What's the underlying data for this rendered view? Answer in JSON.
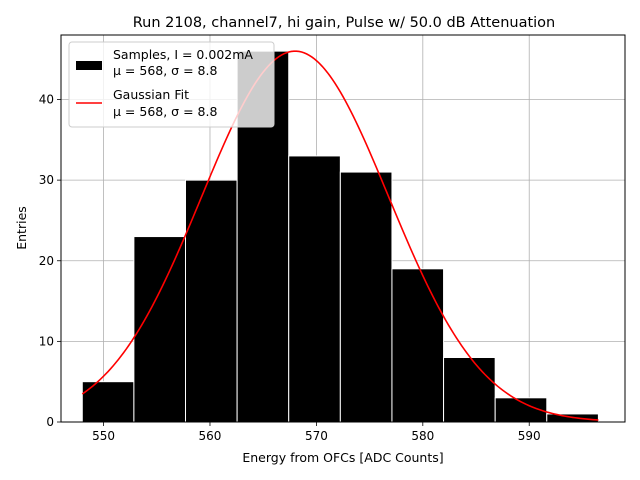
{
  "chart_data": {
    "type": "bar",
    "title": "Run 2108, channel7, hi gain, Pulse w/ 50.0 dB Attenuation",
    "xlabel": "Energy from OFCs [ADC Counts]",
    "ylabel": "Entries",
    "xlim": [
      546,
      599
    ],
    "ylim": [
      0,
      48
    ],
    "xticks": [
      550,
      560,
      570,
      580,
      590
    ],
    "yticks": [
      0,
      10,
      20,
      30,
      40
    ],
    "grid": true,
    "legend_position": "upper-left",
    "histogram": {
      "name": "Samples, I = 0.002mA",
      "stats": "μ = 568, σ = 8.8",
      "color": "#000000",
      "edgecolor": "#ffffff",
      "bin_edges": [
        548.0,
        552.85,
        557.7,
        562.55,
        567.4,
        572.25,
        577.1,
        581.95,
        586.8,
        591.65,
        596.5
      ],
      "counts": [
        5,
        23,
        30,
        46,
        33,
        31,
        19,
        8,
        3,
        1
      ]
    },
    "fit": {
      "name": "Gaussian Fit",
      "stats": "μ = 568, σ = 8.8",
      "color": "#ff0000",
      "mu": 568,
      "sigma": 8.8,
      "amplitude": 46,
      "x_range": [
        548.0,
        596.5
      ]
    }
  }
}
